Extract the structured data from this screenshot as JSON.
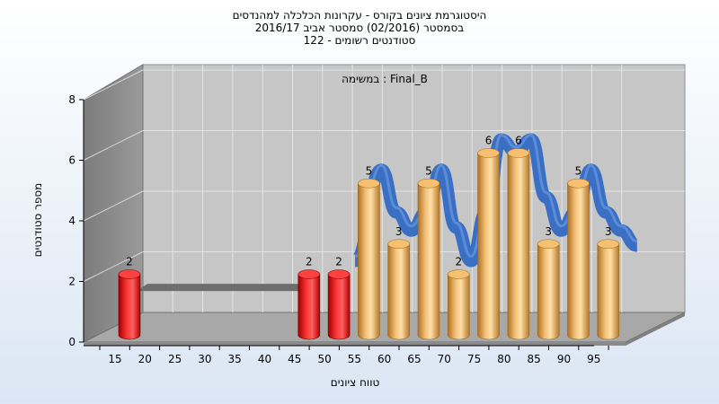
{
  "chart_data": {
    "type": "bar",
    "title_lines": [
      "היסטוגרמת ציונים בקורס - עקרונות הכלכלה למהנדסים",
      "בסמסטר  (02/2016)  סמסטר אביב 2016/17",
      "סטודנטים רשומים - 122"
    ],
    "subtitle": "במשימה : Final_B",
    "xlabel": "טווח ציונים",
    "ylabel": "מספר סטודנטים",
    "ylim": [
      0,
      8
    ],
    "yticks": [
      "0",
      "2",
      "4",
      "6",
      "8"
    ],
    "categories": [
      "15",
      "20",
      "25",
      "30",
      "35",
      "40",
      "45",
      "50",
      "55",
      "60",
      "65",
      "70",
      "75",
      "80",
      "85",
      "90",
      "95"
    ],
    "values": [
      2,
      0,
      0,
      0,
      0,
      0,
      2,
      2,
      5,
      3,
      5,
      2,
      6,
      6,
      3,
      5,
      3
    ],
    "fail_threshold": 55,
    "colors": {
      "fail": "#e01818",
      "pass": "#e8a848",
      "curve": "#3a6fc4"
    }
  }
}
